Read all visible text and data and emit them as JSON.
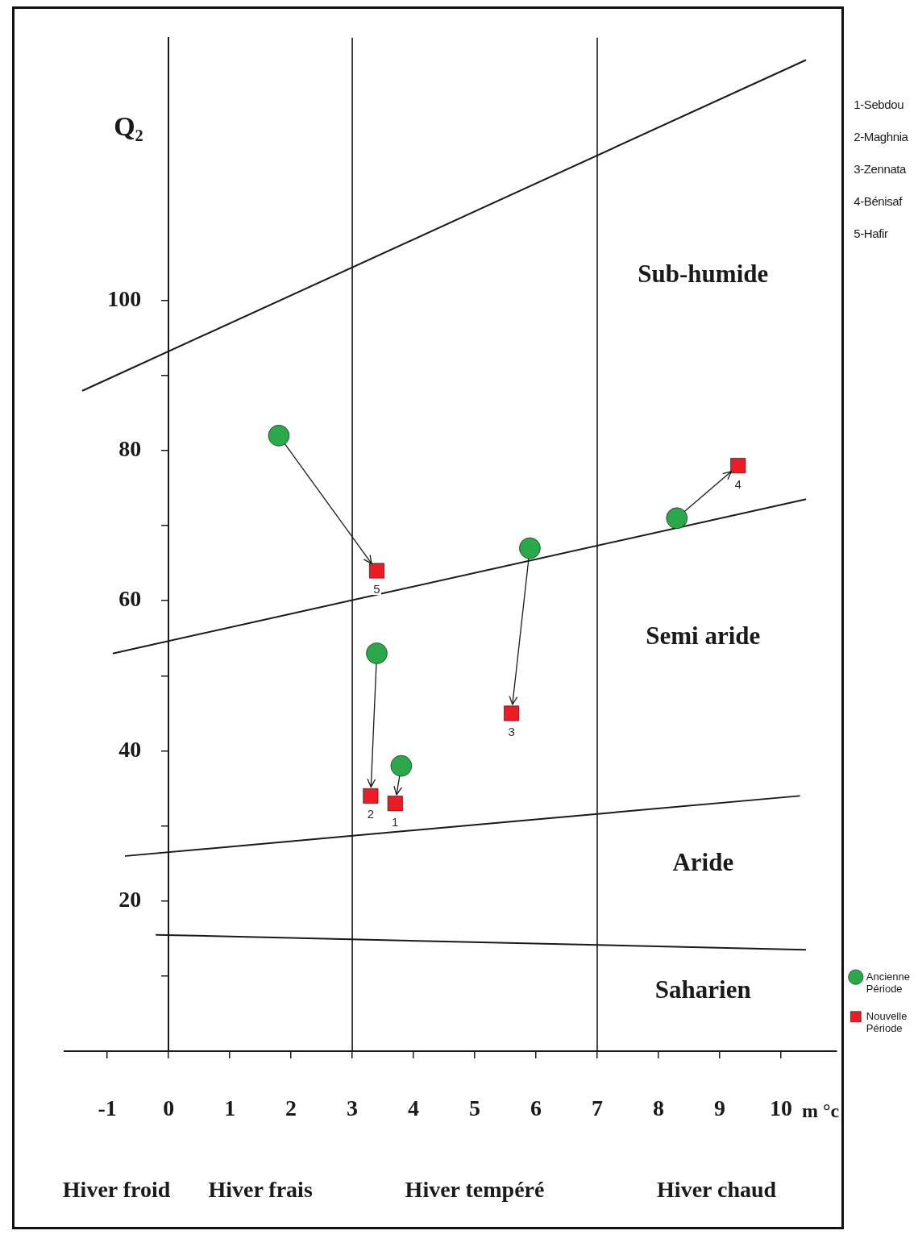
{
  "chart_data": {
    "type": "scatter",
    "xlabel": "m °c",
    "ylabel": "Q₂",
    "annotations": [
      "1-Sebdou",
      "2-Maghnia",
      "3-Zennata",
      "4-Bénisaf",
      "5-Hafir",
      "Sub-humide",
      "Semi aride",
      "Aride",
      "Saharien",
      "Hiver froid",
      "Hiver frais",
      "Hiver tempéré",
      "Hiver chaud",
      {
        "text": "1",
        "x": 3.7,
        "y": 33
      },
      {
        "text": "2",
        "x": 3.3,
        "y": 34
      },
      {
        "text": "3",
        "x": 5.6,
        "y": 45
      },
      {
        "text": "4",
        "x": 9.3,
        "y": 78
      },
      {
        "text": "5",
        "x": 3.4,
        "y": 64
      }
    ],
    "series": [
      {
        "name": "Ancienne Période",
        "color": "#2aa84a",
        "marker": "circle",
        "x": [
          3.8,
          3.4,
          5.9,
          8.3,
          1.8
        ],
        "values": [
          38,
          53,
          67,
          71,
          82
        ]
      },
      {
        "name": "Nouvelle Période",
        "color": "#ec1c24",
        "marker": "square",
        "x": [
          3.7,
          3.3,
          5.6,
          9.3,
          3.4
        ],
        "values": [
          33,
          34,
          45,
          78,
          64
        ]
      },
      {
        "type": "line",
        "color": "#1a1a1a",
        "marker": "none",
        "x": [
          -1.4,
          10.4
        ],
        "values": [
          88,
          132
        ]
      },
      {
        "type": "line",
        "color": "#1a1a1a",
        "marker": "none",
        "x": [
          -0.9,
          10.4
        ],
        "values": [
          53,
          73.5
        ]
      },
      {
        "type": "line",
        "color": "#1a1a1a",
        "marker": "none",
        "x": [
          -0.7,
          10.3
        ],
        "values": [
          26,
          34
        ]
      },
      {
        "type": "line",
        "color": "#1a1a1a",
        "marker": "none",
        "x": [
          -0.2,
          10.4
        ],
        "values": [
          15.5,
          13.5
        ]
      }
    ],
    "ref_lines": [
      {
        "axis": "x",
        "value": 3,
        "color": "#1a1a1a"
      },
      {
        "axis": "x",
        "value": 7,
        "color": "#1a1a1a"
      }
    ],
    "xlim": [
      -1.7,
      10.9
    ],
    "xticks": [
      -1,
      0,
      1,
      2,
      3,
      4,
      5,
      6,
      7,
      8,
      9,
      10
    ],
    "ylim": [
      0,
      135
    ],
    "yticks": [
      {
        "value": 10,
        "label": null
      },
      20,
      {
        "value": 30,
        "label": null
      },
      40,
      {
        "value": 50,
        "label": null
      },
      60,
      {
        "value": 70,
        "label": null
      },
      80,
      {
        "value": 90,
        "label": null
      },
      100
    ],
    "grid": false,
    "legend": "bottom right"
  }
}
